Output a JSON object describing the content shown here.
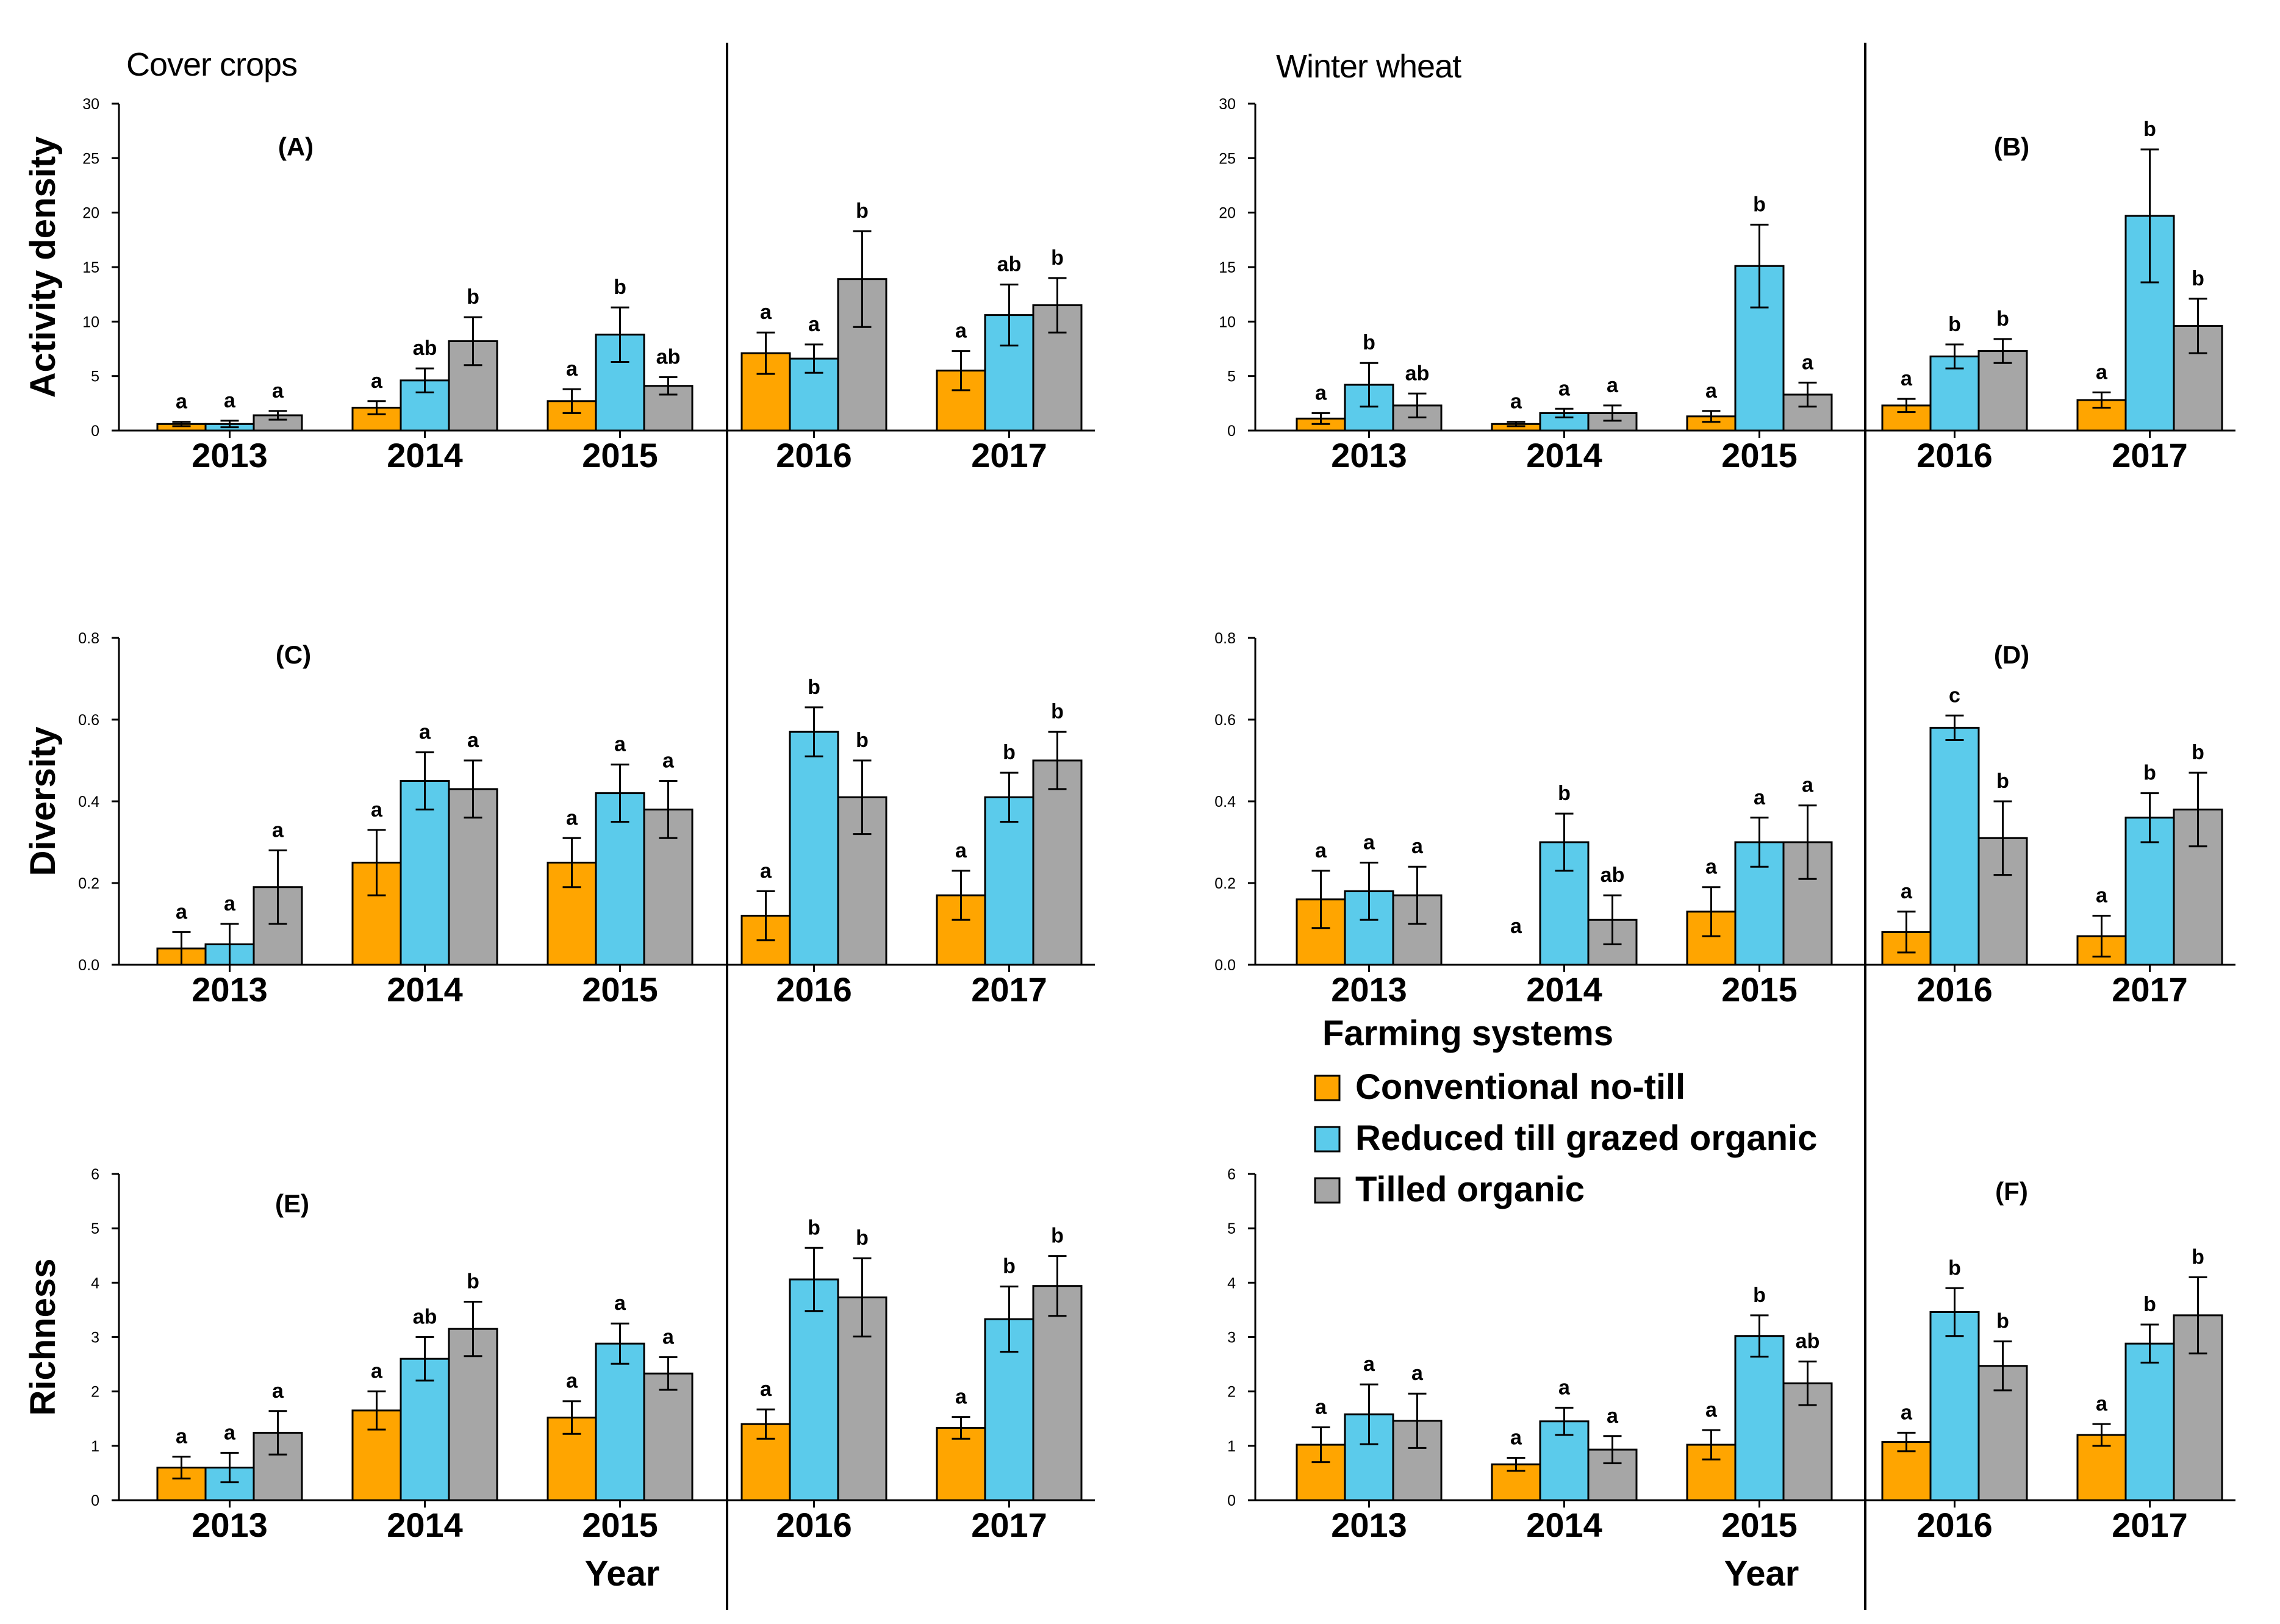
{
  "labels": {
    "cover_crops": "Cover crops",
    "winter_wheat": "Winter wheat",
    "xlabel": "Year"
  },
  "colors": {
    "Conventional no-till": "#ffa500",
    "Reduced till grazed organic": "#5bcbeb",
    "Tilled organic": "#a6a6a6"
  },
  "legend": {
    "title": "Farming systems",
    "items": [
      "Conventional no-till",
      "Reduced till grazed organic",
      "Tilled organic"
    ]
  },
  "chart_data": [
    {
      "type": "bar",
      "panel": "(A)",
      "section": "Cover crops",
      "ylabel": "Activity density",
      "xlabel": "Year",
      "categories": [
        "2013",
        "2014",
        "2015",
        "2016",
        "2017"
      ],
      "ylim": [
        0,
        30
      ],
      "yticks": [
        "0",
        "5",
        "10",
        "15",
        "20",
        "25",
        "30"
      ],
      "series": [
        {
          "name": "Conventional no-till",
          "values": [
            0.6,
            2.1,
            2.7,
            7.1,
            5.5
          ],
          "errors": [
            0.2,
            0.6,
            1.1,
            1.9,
            1.8
          ],
          "letters": [
            "a",
            "a",
            "a",
            "a",
            "a"
          ]
        },
        {
          "name": "Reduced till grazed organic",
          "values": [
            0.6,
            4.6,
            8.8,
            6.6,
            10.6
          ],
          "errors": [
            0.3,
            1.1,
            2.5,
            1.3,
            2.8
          ],
          "letters": [
            "a",
            "ab",
            "b",
            "a",
            "ab"
          ]
        },
        {
          "name": "Tilled organic",
          "values": [
            1.4,
            8.2,
            4.1,
            13.9,
            11.5
          ],
          "errors": [
            0.4,
            2.2,
            0.8,
            4.4,
            2.5
          ],
          "letters": [
            "a",
            "b",
            "ab",
            "b",
            "b"
          ]
        }
      ]
    },
    {
      "type": "bar",
      "panel": "(B)",
      "section": "Winter wheat",
      "ylabel": "",
      "xlabel": "Year",
      "categories": [
        "2013",
        "2014",
        "2015",
        "2016",
        "2017"
      ],
      "ylim": [
        0,
        30
      ],
      "yticks": [
        "0",
        "5",
        "10",
        "15",
        "20",
        "25",
        "30"
      ],
      "series": [
        {
          "name": "Conventional no-till",
          "values": [
            1.1,
            0.6,
            1.3,
            2.3,
            2.8
          ],
          "errors": [
            0.5,
            0.2,
            0.5,
            0.6,
            0.7
          ],
          "letters": [
            "a",
            "a",
            "a",
            "a",
            "a"
          ]
        },
        {
          "name": "Reduced till grazed organic",
          "values": [
            4.2,
            1.6,
            15.1,
            6.8,
            19.7
          ],
          "errors": [
            2.0,
            0.4,
            3.8,
            1.1,
            6.1
          ],
          "letters": [
            "b",
            "a",
            "b",
            "b",
            "b"
          ]
        },
        {
          "name": "Tilled organic",
          "values": [
            2.3,
            1.6,
            3.3,
            7.3,
            9.6
          ],
          "errors": [
            1.1,
            0.7,
            1.1,
            1.1,
            2.5
          ],
          "letters": [
            "ab",
            "a",
            "a",
            "b",
            "b"
          ]
        }
      ]
    },
    {
      "type": "bar",
      "panel": "(C)",
      "section": "Cover crops",
      "ylabel": "Diversity",
      "xlabel": "Year",
      "categories": [
        "2013",
        "2014",
        "2015",
        "2016",
        "2017"
      ],
      "ylim": [
        0,
        0.8
      ],
      "yticks": [
        "0.0",
        "0.2",
        "0.4",
        "0.6",
        "0.8"
      ],
      "series": [
        {
          "name": "Conventional no-till",
          "values": [
            0.04,
            0.25,
            0.25,
            0.12,
            0.17
          ],
          "errors": [
            0.04,
            0.08,
            0.06,
            0.06,
            0.06
          ],
          "letters": [
            "a",
            "a",
            "a",
            "a",
            "a"
          ]
        },
        {
          "name": "Reduced till grazed organic",
          "values": [
            0.05,
            0.45,
            0.42,
            0.57,
            0.41
          ],
          "errors": [
            0.05,
            0.07,
            0.07,
            0.06,
            0.06
          ],
          "letters": [
            "a",
            "a",
            "a",
            "b",
            "b"
          ]
        },
        {
          "name": "Tilled organic",
          "values": [
            0.19,
            0.43,
            0.38,
            0.41,
            0.5
          ],
          "errors": [
            0.09,
            0.07,
            0.07,
            0.09,
            0.07
          ],
          "letters": [
            "a",
            "a",
            "a",
            "b",
            "b"
          ]
        }
      ]
    },
    {
      "type": "bar",
      "panel": "(D)",
      "section": "Winter wheat",
      "ylabel": "",
      "xlabel": "Year",
      "categories": [
        "2013",
        "2014",
        "2015",
        "2016",
        "2017"
      ],
      "ylim": [
        0,
        0.8
      ],
      "yticks": [
        "0.0",
        "0.2",
        "0.4",
        "0.6",
        "0.8"
      ],
      "series": [
        {
          "name": "Conventional no-till",
          "values": [
            0.16,
            0,
            0.13,
            0.08,
            0.07
          ],
          "errors": [
            0.07,
            0,
            0.06,
            0.05,
            0.05
          ],
          "letters": [
            "a",
            "a",
            "a",
            "a",
            "a"
          ]
        },
        {
          "name": "Reduced till grazed organic",
          "values": [
            0.18,
            0.3,
            0.3,
            0.58,
            0.36
          ],
          "errors": [
            0.07,
            0.07,
            0.06,
            0.03,
            0.06
          ],
          "letters": [
            "a",
            "b",
            "a",
            "c",
            "b"
          ]
        },
        {
          "name": "Tilled organic",
          "values": [
            0.17,
            0.11,
            0.3,
            0.31,
            0.38
          ],
          "errors": [
            0.07,
            0.06,
            0.09,
            0.09,
            0.09
          ],
          "letters": [
            "a",
            "ab",
            "a",
            "b",
            "b"
          ]
        }
      ]
    },
    {
      "type": "bar",
      "panel": "(E)",
      "section": "Cover crops",
      "ylabel": "Richness",
      "xlabel": "Year",
      "categories": [
        "2013",
        "2014",
        "2015",
        "2016",
        "2017"
      ],
      "ylim": [
        0,
        6
      ],
      "yticks": [
        "0",
        "1",
        "2",
        "3",
        "4",
        "5",
        "6"
      ],
      "series": [
        {
          "name": "Conventional no-till",
          "values": [
            0.6,
            1.65,
            1.52,
            1.4,
            1.33
          ],
          "errors": [
            0.2,
            0.35,
            0.3,
            0.27,
            0.2
          ],
          "letters": [
            "a",
            "a",
            "a",
            "a",
            "a"
          ]
        },
        {
          "name": "Reduced till grazed organic",
          "values": [
            0.6,
            2.6,
            2.88,
            4.06,
            3.33
          ],
          "errors": [
            0.27,
            0.4,
            0.37,
            0.58,
            0.6
          ],
          "letters": [
            "a",
            "ab",
            "a",
            "b",
            "b"
          ]
        },
        {
          "name": "Tilled organic",
          "values": [
            1.24,
            3.15,
            2.33,
            3.73,
            3.94
          ],
          "errors": [
            0.4,
            0.5,
            0.3,
            0.72,
            0.55
          ],
          "letters": [
            "a",
            "b",
            "a",
            "b",
            "b"
          ]
        }
      ]
    },
    {
      "type": "bar",
      "panel": "(F)",
      "section": "Winter wheat",
      "ylabel": "",
      "xlabel": "Year",
      "categories": [
        "2013",
        "2014",
        "2015",
        "2016",
        "2017"
      ],
      "ylim": [
        0,
        6
      ],
      "yticks": [
        "0",
        "1",
        "2",
        "3",
        "4",
        "5",
        "6"
      ],
      "series": [
        {
          "name": "Conventional no-till",
          "values": [
            1.02,
            0.66,
            1.02,
            1.07,
            1.2
          ],
          "errors": [
            0.32,
            0.12,
            0.27,
            0.17,
            0.2
          ],
          "letters": [
            "a",
            "a",
            "a",
            "a",
            "a"
          ]
        },
        {
          "name": "Reduced till grazed organic",
          "values": [
            1.58,
            1.45,
            3.02,
            3.46,
            2.88
          ],
          "errors": [
            0.55,
            0.25,
            0.38,
            0.44,
            0.35
          ],
          "letters": [
            "a",
            "a",
            "b",
            "b",
            "b"
          ]
        },
        {
          "name": "Tilled organic",
          "values": [
            1.46,
            0.93,
            2.15,
            2.47,
            3.4
          ],
          "errors": [
            0.5,
            0.25,
            0.4,
            0.45,
            0.7
          ],
          "letters": [
            "a",
            "a",
            "ab",
            "b",
            "b"
          ]
        }
      ]
    }
  ]
}
